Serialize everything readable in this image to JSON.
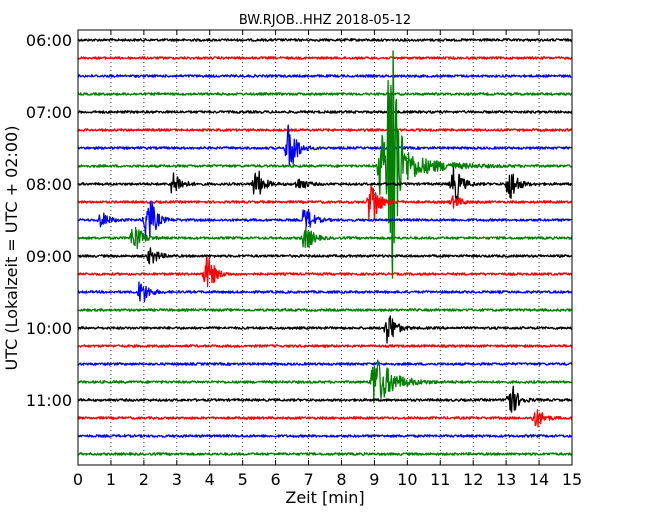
{
  "chart_data": {
    "type": "line",
    "subtype": "seismogram-helicorder",
    "title": "BW.RJOB..HHZ 2018-05-12",
    "xlabel": "Zeit  [min]",
    "ylabel": "UTC (Lokalzeit = UTC + 02:00)",
    "xlim": [
      0,
      15
    ],
    "x_ticks": [
      0,
      1,
      2,
      3,
      4,
      5,
      6,
      7,
      8,
      9,
      10,
      11,
      12,
      13,
      14,
      15
    ],
    "x_tick_labels": [
      "0",
      "1",
      "2",
      "3",
      "4",
      "5",
      "6",
      "7",
      "8",
      "9",
      "10",
      "11",
      "12",
      "13",
      "14",
      "15"
    ],
    "y_tick_labels": [
      "06:00",
      "07:00",
      "08:00",
      "09:00",
      "10:00",
      "11:00"
    ],
    "grid": "vertical dotted",
    "minutes_per_line": 15,
    "line_colors": [
      "#000000",
      "#ff0000",
      "#0000ff",
      "#008000"
    ],
    "series": [
      {
        "start": "06:00",
        "bursts": []
      },
      {
        "start": "06:15",
        "bursts": []
      },
      {
        "start": "06:30",
        "bursts": []
      },
      {
        "start": "06:45",
        "bursts": []
      },
      {
        "start": "07:00",
        "bursts": []
      },
      {
        "start": "07:15",
        "bursts": []
      },
      {
        "start": "07:30",
        "bursts": [
          {
            "t": 6.5,
            "amp": 22
          }
        ]
      },
      {
        "start": "07:45",
        "bursts": [
          {
            "t": 9.3,
            "amp": 30,
            "tail": 2.4
          },
          {
            "t": 9.6,
            "amp": 140,
            "tail": 0.3
          }
        ]
      },
      {
        "start": "08:00",
        "bursts": [
          {
            "t": 3.0,
            "amp": 10
          },
          {
            "t": 5.5,
            "amp": 12
          },
          {
            "t": 6.8,
            "amp": 5
          },
          {
            "t": 11.5,
            "amp": 16
          },
          {
            "t": 13.2,
            "amp": 14
          }
        ]
      },
      {
        "start": "08:15",
        "bursts": [
          {
            "t": 9.0,
            "amp": 20
          },
          {
            "t": 11.5,
            "amp": 5
          }
        ]
      },
      {
        "start": "08:30",
        "bursts": [
          {
            "t": 0.8,
            "amp": 6
          },
          {
            "t": 2.2,
            "amp": 22
          },
          {
            "t": 7.0,
            "amp": 10
          }
        ]
      },
      {
        "start": "08:45",
        "bursts": [
          {
            "t": 1.8,
            "amp": 12
          },
          {
            "t": 7.0,
            "amp": 10
          }
        ]
      },
      {
        "start": "09:00",
        "bursts": [
          {
            "t": 2.3,
            "amp": 7
          }
        ]
      },
      {
        "start": "09:15",
        "bursts": [
          {
            "t": 4.0,
            "amp": 16
          }
        ]
      },
      {
        "start": "09:30",
        "bursts": [
          {
            "t": 2.0,
            "amp": 10
          }
        ]
      },
      {
        "start": "09:45",
        "bursts": []
      },
      {
        "start": "10:00",
        "bursts": [
          {
            "t": 9.5,
            "amp": 14
          }
        ]
      },
      {
        "start": "10:15",
        "bursts": []
      },
      {
        "start": "10:30",
        "bursts": []
      },
      {
        "start": "10:45",
        "bursts": [
          {
            "t": 9.1,
            "amp": 24,
            "tail": 1.3
          }
        ]
      },
      {
        "start": "11:00",
        "bursts": [
          {
            "t": 13.2,
            "amp": 14
          }
        ]
      },
      {
        "start": "11:15",
        "bursts": [
          {
            "t": 14.0,
            "amp": 8
          }
        ]
      },
      {
        "start": "11:30",
        "bursts": []
      },
      {
        "start": "11:45",
        "bursts": []
      }
    ]
  }
}
